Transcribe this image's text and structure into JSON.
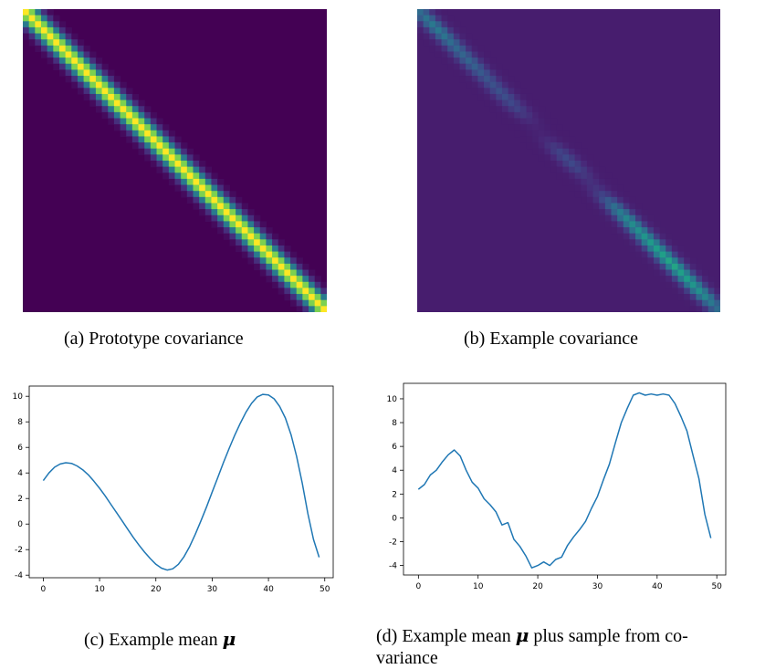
{
  "figure": {
    "captions": {
      "a": "(a) Prototype covariance",
      "b": "(b) Example covariance",
      "c_prefix": "(c) Example mean",
      "c_symbol": "μ",
      "d_prefix": "(d) Example mean",
      "d_symbol": "μ",
      "d_suffix_line1": "plus sample from co-",
      "d_line2": "variance"
    }
  },
  "chart_data": [
    {
      "id": "a",
      "type": "heatmap",
      "size": 50,
      "bandwidth": 1.5,
      "diag_max": 1.0,
      "off_level": 0.0,
      "colormap": "viridis"
    },
    {
      "id": "b",
      "type": "heatmap",
      "size": 50,
      "bandwidth": 1.2,
      "off_level": 0.08,
      "diag_profile": [
        0.35,
        0.38,
        0.4,
        0.4,
        0.38,
        0.35,
        0.33,
        0.32,
        0.32,
        0.3,
        0.28,
        0.26,
        0.25,
        0.25,
        0.24,
        0.22,
        0.2,
        0.16,
        0.12,
        0.1,
        0.1,
        0.12,
        0.16,
        0.2,
        0.22,
        0.22,
        0.2,
        0.16,
        0.14,
        0.15,
        0.2,
        0.28,
        0.36,
        0.42,
        0.46,
        0.48,
        0.5,
        0.52,
        0.54,
        0.55,
        0.56,
        0.58,
        0.58,
        0.56,
        0.55,
        0.52,
        0.5,
        0.46,
        0.4,
        0.35
      ],
      "colormap": "viridis"
    },
    {
      "id": "c",
      "type": "line",
      "xlim": [
        -2.5,
        51.5
      ],
      "ylim": [
        -4.2,
        10.8
      ],
      "xticks": [
        0,
        10,
        20,
        30,
        40,
        50
      ],
      "yticks": [
        -4,
        -2,
        0,
        2,
        4,
        6,
        8,
        10
      ],
      "color": "#1f77b4",
      "x": [
        0,
        1,
        2,
        3,
        4,
        5,
        6,
        7,
        8,
        9,
        10,
        11,
        12,
        13,
        14,
        15,
        16,
        17,
        18,
        19,
        20,
        21,
        22,
        23,
        24,
        25,
        26,
        27,
        28,
        29,
        30,
        31,
        32,
        33,
        34,
        35,
        36,
        37,
        38,
        39,
        40,
        41,
        42,
        43,
        44,
        45,
        46,
        47,
        48,
        49
      ],
      "y": [
        3.4,
        4.0,
        4.45,
        4.7,
        4.8,
        4.75,
        4.55,
        4.25,
        3.85,
        3.35,
        2.8,
        2.2,
        1.55,
        0.9,
        0.25,
        -0.4,
        -1.05,
        -1.65,
        -2.2,
        -2.7,
        -3.15,
        -3.45,
        -3.6,
        -3.5,
        -3.15,
        -2.55,
        -1.75,
        -0.8,
        0.25,
        1.35,
        2.5,
        3.65,
        4.8,
        5.9,
        6.95,
        7.9,
        8.75,
        9.45,
        9.95,
        10.15,
        10.1,
        9.8,
        9.2,
        8.3,
        7.0,
        5.3,
        3.2,
        0.8,
        -1.2,
        -2.6
      ]
    },
    {
      "id": "d",
      "type": "line",
      "xlim": [
        -2.5,
        51.5
      ],
      "ylim": [
        -4.8,
        11.3
      ],
      "xticks": [
        0,
        10,
        20,
        30,
        40,
        50
      ],
      "yticks": [
        -4,
        -2,
        0,
        2,
        4,
        6,
        8,
        10
      ],
      "color": "#1f77b4",
      "x": [
        0,
        1,
        2,
        3,
        4,
        5,
        6,
        7,
        8,
        9,
        10,
        11,
        12,
        13,
        14,
        15,
        16,
        17,
        18,
        19,
        20,
        21,
        22,
        23,
        24,
        25,
        26,
        27,
        28,
        29,
        30,
        31,
        32,
        33,
        34,
        35,
        36,
        37,
        38,
        39,
        40,
        41,
        42,
        43,
        44,
        45,
        46,
        47,
        48,
        49
      ],
      "y": [
        2.4,
        2.8,
        3.6,
        4.0,
        4.7,
        5.3,
        5.7,
        5.2,
        4.0,
        3.0,
        2.5,
        1.6,
        1.1,
        0.5,
        -0.6,
        -0.4,
        -1.8,
        -2.4,
        -3.2,
        -4.2,
        -4.0,
        -3.7,
        -4.0,
        -3.5,
        -3.3,
        -2.3,
        -1.6,
        -1.0,
        -0.3,
        0.8,
        1.8,
        3.2,
        4.5,
        6.3,
        8.0,
        9.2,
        10.3,
        10.5,
        10.3,
        10.4,
        10.3,
        10.4,
        10.3,
        9.6,
        8.5,
        7.3,
        5.3,
        3.3,
        0.3,
        -1.7
      ]
    }
  ]
}
